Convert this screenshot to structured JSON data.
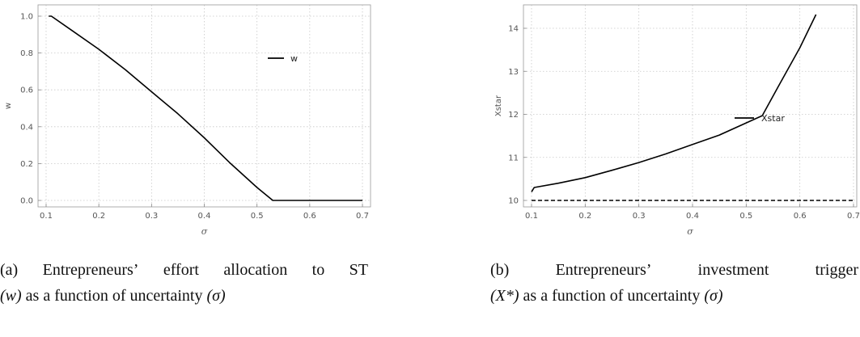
{
  "chart_data": [
    {
      "type": "line",
      "xlabel": "σ",
      "ylabel": "w",
      "xlim": [
        0.1,
        0.7
      ],
      "ylim": [
        0,
        1.0
      ],
      "x_ticks": [
        "0.1",
        "0.2",
        "0.3",
        "0.4",
        "0.5",
        "0.6",
        "0.7"
      ],
      "y_ticks": [
        "0.0",
        "0.2",
        "0.4",
        "0.6",
        "0.8",
        "1.0"
      ],
      "grid": true,
      "legend_position": "top-right",
      "series": [
        {
          "name": "w",
          "style": "solid",
          "x": [
            0.105,
            0.11,
            0.15,
            0.2,
            0.25,
            0.3,
            0.35,
            0.4,
            0.45,
            0.5,
            0.53,
            0.6,
            0.7
          ],
          "y": [
            1.0,
            1.0,
            0.92,
            0.82,
            0.71,
            0.59,
            0.47,
            0.34,
            0.2,
            0.07,
            0.0,
            0.0,
            0.0
          ]
        }
      ]
    },
    {
      "type": "line",
      "xlabel": "σ",
      "ylabel": "Xstar",
      "xlim": [
        0.1,
        0.7
      ],
      "ylim": [
        10,
        14
      ],
      "x_ticks": [
        "0.1",
        "0.2",
        "0.3",
        "0.4",
        "0.5",
        "0.6",
        "0.7"
      ],
      "y_ticks": [
        "10",
        "11",
        "12",
        "13",
        "14"
      ],
      "grid": true,
      "legend_position": "right",
      "series": [
        {
          "name": "Xstar",
          "style": "solid",
          "x": [
            0.1,
            0.105,
            0.15,
            0.2,
            0.25,
            0.3,
            0.35,
            0.4,
            0.45,
            0.5,
            0.53,
            0.56,
            0.6,
            0.63
          ],
          "y": [
            10.2,
            10.3,
            10.4,
            10.53,
            10.7,
            10.88,
            11.08,
            11.3,
            11.52,
            11.8,
            11.97,
            12.65,
            13.55,
            14.32
          ]
        },
        {
          "style": "dashed",
          "x": [
            0.1,
            0.7
          ],
          "y": [
            10.0,
            10.0
          ]
        }
      ]
    }
  ],
  "captions": {
    "a": {
      "label": "(a)",
      "line1_words": [
        "Entrepreneurs’",
        "effort",
        "allocation",
        "to",
        "ST"
      ],
      "line2_var": "(w)",
      "line2_text": "as a function of uncertainty",
      "line2_sigma": "(σ)"
    },
    "b": {
      "label": "(b)",
      "line1_words": [
        "Entrepreneurs’",
        "investment",
        "trigger"
      ],
      "line2_var": "(X*)",
      "line2_text": "as a function of uncertainty",
      "line2_sigma": "(σ)"
    }
  }
}
